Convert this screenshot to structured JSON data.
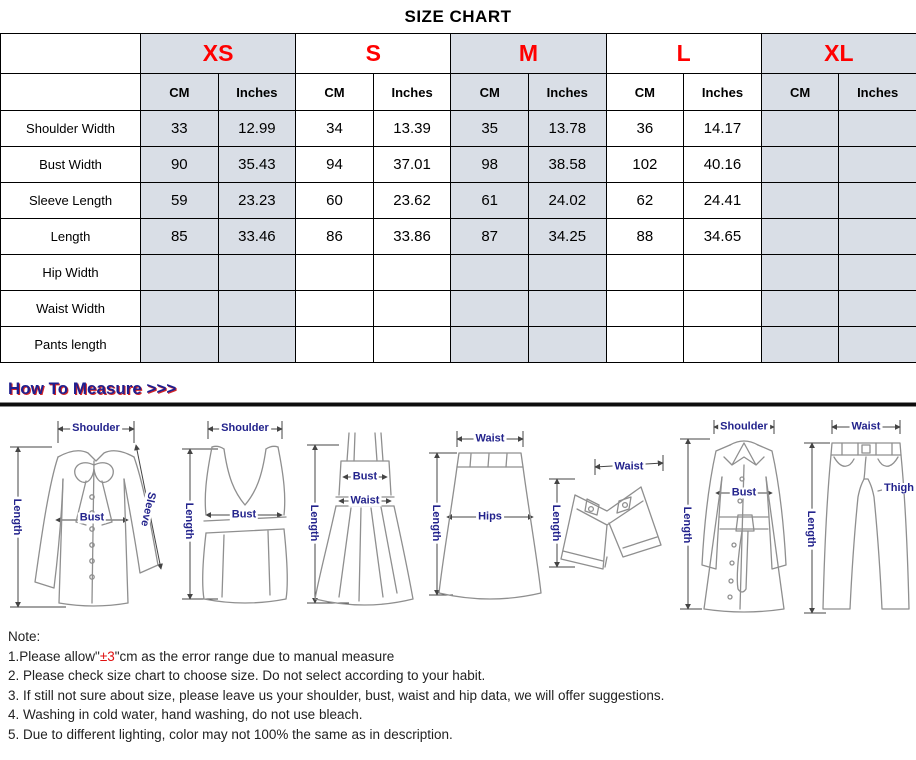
{
  "title": "SIZE CHART",
  "colors": {
    "accent_red": "#ff0000",
    "header_shade": "#d9dee6",
    "heading_navy": "#1f1f8f",
    "diagram_label_navy": "#23238c"
  },
  "table": {
    "sizes": [
      {
        "label": "XS",
        "shaded": true
      },
      {
        "label": "S",
        "shaded": false
      },
      {
        "label": "M",
        "shaded": true
      },
      {
        "label": "L",
        "shaded": false
      },
      {
        "label": "XL",
        "shaded": true
      }
    ],
    "units": [
      "CM",
      "Inches"
    ],
    "rows": [
      {
        "label": "Shoulder Width",
        "values": [
          "33",
          "12.99",
          "34",
          "13.39",
          "35",
          "13.78",
          "36",
          "14.17",
          "",
          ""
        ]
      },
      {
        "label": "Bust Width",
        "values": [
          "90",
          "35.43",
          "94",
          "37.01",
          "98",
          "38.58",
          "102",
          "40.16",
          "",
          ""
        ]
      },
      {
        "label": "Sleeve Length",
        "values": [
          "59",
          "23.23",
          "60",
          "23.62",
          "61",
          "24.02",
          "62",
          "24.41",
          "",
          ""
        ]
      },
      {
        "label": "Length",
        "values": [
          "85",
          "33.46",
          "86",
          "33.86",
          "87",
          "34.25",
          "88",
          "34.65",
          "",
          ""
        ]
      },
      {
        "label": "Hip Width",
        "values": [
          "",
          "",
          "",
          "",
          "",
          "",
          "",
          "",
          "",
          ""
        ]
      },
      {
        "label": "Waist Width",
        "values": [
          "",
          "",
          "",
          "",
          "",
          "",
          "",
          "",
          "",
          ""
        ]
      },
      {
        "label": "Pants length",
        "values": [
          "",
          "",
          "",
          "",
          "",
          "",
          "",
          "",
          "",
          ""
        ]
      }
    ]
  },
  "measure": {
    "heading": "How To Measure >>>",
    "garments": [
      {
        "name": "blouse",
        "labels": {
          "shoulder": "Shoulder",
          "bust": "Bust",
          "sleeve": "Sleeve",
          "length": "Length"
        }
      },
      {
        "name": "tank-top",
        "labels": {
          "shoulder": "Shoulder",
          "bust": "Bust",
          "length": "Length"
        }
      },
      {
        "name": "dress",
        "labels": {
          "bust": "Bust",
          "waist": "Waist",
          "length": "Length"
        }
      },
      {
        "name": "skirt",
        "labels": {
          "waist": "Waist",
          "hips": "Hips",
          "length": "Length"
        }
      },
      {
        "name": "shorts",
        "labels": {
          "waist": "Waist",
          "length": "Length"
        }
      },
      {
        "name": "coat",
        "labels": {
          "shoulder": "Shoulder",
          "bust": "Bust",
          "length": "Length"
        }
      },
      {
        "name": "pants",
        "labels": {
          "waist": "Waist",
          "thigh": "Thigh",
          "length": "Length"
        }
      }
    ]
  },
  "notes": {
    "heading": "Note:",
    "note1": {
      "prefix": "1.Please allow\"",
      "em": "±3",
      "suffix": "\"cm as the error range due to manual measure"
    },
    "items": [
      "2. Please check size chart to choose size. Do not select according to your habit.",
      "3. If still not sure about size, please leave us your shoulder, bust, waist and hip data, we will offer suggestions.",
      "4. Washing in cold water, hand washing, do not use bleach.",
      "5. Due to different lighting, color may not 100% the same as in description."
    ]
  }
}
